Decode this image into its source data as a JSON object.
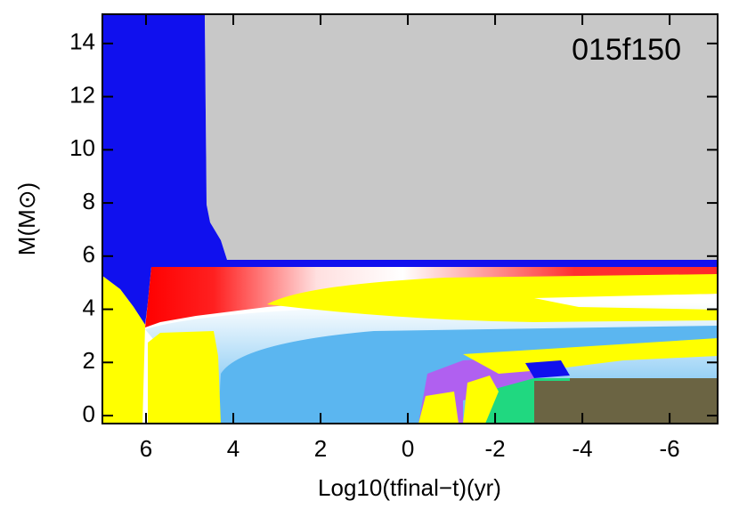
{
  "chart_data": {
    "type": "kippenhahn",
    "annotation": "015f150",
    "xlabel": "Log10(tfinal−t)(yr)",
    "ylabel": "M(M⊙)",
    "xlim": [
      7,
      -7.1
    ],
    "ylim": [
      -0.3,
      15.1
    ],
    "xticks": [
      6,
      4,
      2,
      0,
      -2,
      -4,
      -6
    ],
    "yticks": [
      0,
      2,
      4,
      6,
      8,
      10,
      12,
      14
    ]
  }
}
